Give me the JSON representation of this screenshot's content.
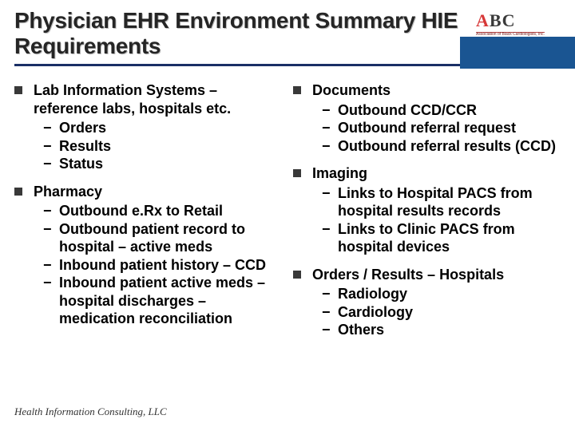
{
  "title": "Physician EHR Environment Summary HIE Requirements",
  "logo": {
    "letter_a": "A",
    "letters_bc": "BC",
    "subtitle": "Association of Black Cardiologists, Inc."
  },
  "colors": {
    "title_underline": "#1a2f66",
    "nav_band": "#1a5592",
    "bullet": "#393939",
    "logo_a": "#d73838",
    "logo_bc": "#3a3a3a",
    "background": "#ffffff"
  },
  "typography": {
    "title_fontsize": 28,
    "body_fontsize": 18,
    "footer_fontsize": 13,
    "body_weight": "bold"
  },
  "columns": {
    "left": [
      {
        "heading": "Lab Information Systems – reference labs, hospitals etc.",
        "subs": [
          "Orders",
          "Results",
          "Status"
        ]
      },
      {
        "heading": "Pharmacy",
        "subs": [
          "Outbound e.Rx to Retail",
          "Outbound patient record to hospital – active meds",
          "Inbound patient history – CCD",
          "Inbound patient active meds – hospital discharges – medication reconciliation"
        ]
      }
    ],
    "right": [
      {
        "heading": "Documents",
        "subs": [
          "Outbound CCD/CCR",
          "Outbound referral request",
          "Outbound referral results (CCD)"
        ]
      },
      {
        "heading": "Imaging",
        "subs": [
          "Links to Hospital PACS from hospital results records",
          "Links to Clinic PACS from hospital devices"
        ]
      },
      {
        "heading": "Orders / Results – Hospitals",
        "subs": [
          "Radiology",
          "Cardiology",
          "Others"
        ]
      }
    ]
  },
  "footer": "Health Information Consulting, LLC"
}
